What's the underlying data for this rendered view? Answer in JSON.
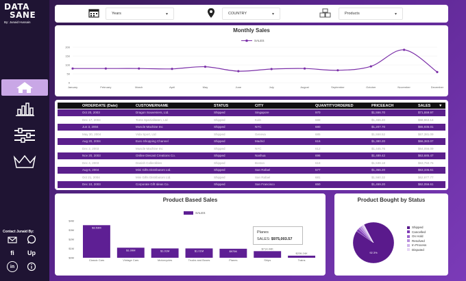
{
  "brand": {
    "line1": "DATA",
    "line2": "SANE",
    "byline": "By: Junaid Hussain"
  },
  "sidebar": {
    "items": [
      {
        "icon": "home-icon"
      },
      {
        "icon": "bar-chart-icon"
      },
      {
        "icon": "sliders-icon"
      },
      {
        "icon": "crown-icon"
      }
    ],
    "contact_label": "Contact Junaid By:",
    "social": [
      {
        "icon": "email-icon",
        "label": ""
      },
      {
        "icon": "whatsapp-icon",
        "label": ""
      },
      {
        "icon": "fiverr-icon",
        "label": "fi"
      },
      {
        "icon": "upwork-icon",
        "label": "Up"
      },
      {
        "icon": "linkedin-icon",
        "label": "in"
      },
      {
        "icon": "info-icon",
        "label": ""
      }
    ]
  },
  "filters": {
    "years": {
      "value": "Years",
      "icon": "calendar-icon"
    },
    "country": {
      "value": "COUNTRY",
      "icon": "location-pin-icon"
    },
    "products": {
      "value": "Products",
      "icon": "boxes-icon"
    }
  },
  "monthly_sales": {
    "chart_data": {
      "type": "line",
      "title": "Monthly Sales",
      "legend": "top-center",
      "series": [
        {
          "name": "SALES",
          "values": [
            80,
            80,
            80,
            78,
            90,
            65,
            77,
            80,
            70,
            92,
            185,
            60
          ]
        }
      ],
      "categories": [
        "January",
        "February",
        "March",
        "April",
        "May",
        "June",
        "July",
        "August",
        "September",
        "October",
        "November",
        "December"
      ],
      "yticks": [
        "0",
        "50",
        "100",
        "150",
        "200"
      ],
      "ylim": [
        0,
        200
      ],
      "color": "#7b2fa8"
    }
  },
  "table": {
    "headers": [
      "ORDERDATE (Date)",
      "CUSTOMERNAME",
      "STATUS",
      "CITY",
      "QUANTITYORDERED",
      "PRICEEACH",
      "SALES"
    ],
    "sort_indicator": "▼",
    "rows": [
      {
        "date": "Oct 20, 2003",
        "customer": "Dragon Souveniers, Ltd.",
        "status": "Shipped",
        "city": "Singapore",
        "qty": "970",
        "price": "$1,556.70",
        "sales": "$71,559.97"
      },
      {
        "date": "Dec 17, 2004",
        "customer": "Toms Spezialitaten, Ltd",
        "status": "Shipped",
        "city": "Koln",
        "qty": "688",
        "price": "$1,455.40",
        "sales": "$68,963.14"
      },
      {
        "date": "Jun 3, 2004",
        "customer": "Muscle Machine Inc",
        "status": "Shipped",
        "city": "NYC",
        "qty": "680",
        "price": "$1,207.70",
        "sales": "$65,935.01"
      },
      {
        "date": "May 30, 2004",
        "customer": "Vida Sport, Ltd",
        "status": "Shipped",
        "city": "Geneva",
        "qty": "685",
        "price": "$1,558.52",
        "sales": "$67,381.09"
      },
      {
        "date": "Aug 20, 2004",
        "customer": "Euro Shopping Channel",
        "status": "Shipped",
        "city": "Madrid",
        "qty": "616",
        "price": "$1,380.20",
        "sales": "$66,383.07"
      },
      {
        "date": "Dec 2, 2003",
        "customer": "Muscle Machine Inc",
        "status": "Shipped",
        "city": "NYC",
        "qty": "612",
        "price": "$1,445.76",
        "sales": "$64,056.09"
      },
      {
        "date": "Nov 20, 2003",
        "customer": "Online Diecast Creations Co.",
        "status": "Shipped",
        "city": "Nashua",
        "qty": "696",
        "price": "$1,489.42",
        "sales": "$63,685.47"
      },
      {
        "date": "Dec 4, 2003",
        "customer": "Danish Collectibles",
        "status": "Shipped",
        "city": "Boston",
        "qty": "618",
        "price": "$1,538.18",
        "sales": "$63,750.76"
      },
      {
        "date": "Aug 6, 2004",
        "customer": "Mini Gifts Distributors Ltd.",
        "status": "Shipped",
        "city": "San Rafael",
        "qty": "577",
        "price": "$1,355.20",
        "sales": "$63,336.61"
      },
      {
        "date": "Oct 21, 2004",
        "customer": "Mini Gifts Distributors Ltd.",
        "status": "Shipped",
        "city": "San Rafael",
        "qty": "681",
        "price": "$1,560.32",
        "sales": "$62,877.77"
      },
      {
        "date": "Dec 10, 2003",
        "customer": "Corporate Gift Ideas Co.",
        "status": "Shipped",
        "city": "San Francisco",
        "qty": "650",
        "price": "$1,459.20",
        "sales": "$62,056.61"
      }
    ]
  },
  "product_sales": {
    "chart_data": {
      "type": "bar",
      "title": "Product Based Sales",
      "legend": "top-center",
      "series": [
        {
          "name": "SALES",
          "values": [
            3.53,
            1.09,
            1.01,
            1.01,
            0.975,
            0.714,
            0.226
          ]
        }
      ],
      "categories": [
        "Classic Cars",
        "Vintage Cars",
        "Motorcycles",
        "Trucks and Buses",
        "Planes",
        "Ships",
        "Trains"
      ],
      "data_labels": [
        "$3.53M",
        "$1.09M",
        "$1.01M",
        "$1.01M",
        "$975K",
        "$714.44K",
        "$226.24K"
      ],
      "yticks": [
        "$0M",
        "$1M",
        "$2M",
        "$3M",
        "$4M"
      ],
      "ylim": [
        0,
        4
      ],
      "unit": "M",
      "color": "#5e1f94"
    },
    "tooltip": {
      "title": "Planes",
      "label": "SALES:",
      "value": "$975,003.57"
    }
  },
  "status_pie": {
    "chart_data": {
      "type": "pie",
      "title": "Product Bought by Status",
      "legend": "right",
      "slices": [
        {
          "name": "Shipped",
          "value": 92.3,
          "color": "#5a1a8c"
        },
        {
          "name": "Cancelled",
          "value": 2.2,
          "color": "#7e3bb4"
        },
        {
          "name": "On Hold",
          "value": 1.7,
          "color": "#9c63cc"
        },
        {
          "name": "Resolved",
          "value": 1.6,
          "color": "#b68ddc"
        },
        {
          "name": "In Process",
          "value": 1.2,
          "color": "#cfb3ea"
        },
        {
          "name": "Disputed",
          "value": 1.0,
          "color": "#e5d6f4"
        }
      ],
      "center_label": "92.3%"
    }
  }
}
